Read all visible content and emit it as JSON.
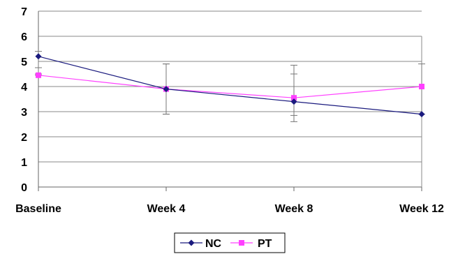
{
  "chart_data": {
    "type": "line",
    "categories": [
      "Baseline",
      "Week 4",
      "Week 8",
      "Week 12"
    ],
    "ylim": [
      0,
      7
    ],
    "yticks": [
      0,
      1,
      2,
      3,
      4,
      5,
      6,
      7
    ],
    "grid": true,
    "legend_position": "bottom-center",
    "series": [
      {
        "name": "NC",
        "color": "#1a1a7e",
        "marker": "diamond",
        "values": [
          5.2,
          3.9,
          3.4,
          2.9
        ],
        "error_low": [
          0.7,
          1.0,
          0.8,
          0.0
        ],
        "error_high": [
          0.2,
          1.0,
          1.1,
          0.0
        ]
      },
      {
        "name": "PT",
        "color": "#ff40ff",
        "marker": "square",
        "values": [
          4.45,
          3.9,
          3.55,
          4.0
        ],
        "error_low": [
          0.0,
          1.0,
          0.7,
          1.1
        ],
        "error_high": [
          0.3,
          1.0,
          1.3,
          0.9
        ]
      }
    ],
    "title": "",
    "xlabel": "",
    "ylabel": ""
  }
}
